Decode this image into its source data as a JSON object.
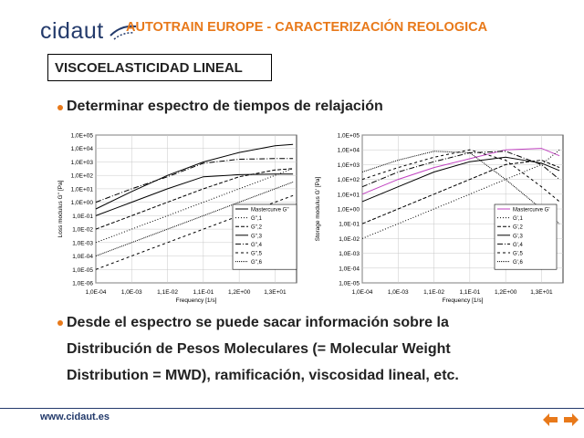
{
  "header": {
    "logo_text": "cidaut",
    "title": "AUTOTRAIN EUROPE - CARACTERIZACIÓN REOLOGICA"
  },
  "section": {
    "title": "VISCOELASTICIDAD LINEAL"
  },
  "bullets": [
    "Determinar espectro de tiempos de relajación",
    "Desde el espectro se puede sacar información sobre la",
    "Distribución de Pesos Moleculares (= Molecular Weight",
    "Distribution = MWD), ramificación, viscosidad lineal, etc."
  ],
  "footer": {
    "url": "www.cidaut.es"
  },
  "colors": {
    "accent": "#e8791a",
    "brand": "#233a6b"
  },
  "chart_data": [
    {
      "type": "line",
      "xlabel": "Frequency [1/s]",
      "ylabel": "Loss modulus G'' [Pa]",
      "x_tick_labels": [
        "1,0E-04",
        "1,0E-03",
        "1,1E-02",
        "1,1E-01",
        "1,2E+00",
        "1,3E+01"
      ],
      "y_tick_labels": [
        "1,0E+05",
        "1,0E+04",
        "1,0E+03",
        "1,0E+02",
        "1,0E+01",
        "1,0E+00",
        "1,0E-01",
        "1,0E-02",
        "1,0E-03",
        "1,0E-04",
        "1,0E-05",
        "1,0E-06"
      ],
      "ylim_log10": [
        -6,
        5
      ],
      "xlim_log10": [
        -4,
        1.6
      ],
      "legend_position": "bottom-right",
      "series": [
        {
          "name": "Mastercurve G''",
          "dash": "",
          "x_log10": [
            -4,
            -3,
            -2,
            -1,
            0,
            1,
            1.5
          ],
          "y_log10": [
            -0.5,
            0.8,
            2,
            3,
            3.7,
            4.2,
            4.3
          ]
        },
        {
          "name": "G'',1",
          "dash": "1,2",
          "x_log10": [
            -4,
            -3,
            -2,
            -1,
            0,
            1,
            1.5
          ],
          "y_log10": [
            -3,
            -2,
            -1,
            0,
            1,
            2,
            2.5
          ]
        },
        {
          "name": "G'',2",
          "dash": "4,2",
          "x_log10": [
            -4,
            -3,
            -2,
            -1,
            0,
            1,
            1.5
          ],
          "y_log10": [
            -2,
            -1,
            0,
            1,
            1.9,
            2.4,
            2.5
          ]
        },
        {
          "name": "G'',3",
          "dash": "",
          "x_log10": [
            -4,
            -3,
            -2,
            -1,
            0,
            1,
            1.5
          ],
          "y_log10": [
            -1,
            0,
            1,
            1.9,
            2.05,
            2.1,
            2.1
          ]
        },
        {
          "name": "G'',4",
          "dash": "6,2,1,2",
          "x_log10": [
            -4,
            -3,
            -2,
            -1,
            0,
            1,
            1.5
          ],
          "y_log10": [
            0,
            1,
            1.9,
            2.9,
            3.2,
            3.25,
            3.25
          ]
        },
        {
          "name": "G'',5",
          "dash": "3,3",
          "x_log10": [
            -4,
            -3,
            -2,
            -1,
            0,
            1,
            1.5
          ],
          "y_log10": [
            -5,
            -4,
            -3,
            -2,
            -1,
            0,
            0.5
          ]
        },
        {
          "name": "G'',6",
          "dash": "1,1",
          "x_log10": [
            -4,
            -3,
            -2,
            -1,
            0,
            1,
            1.5
          ],
          "y_log10": [
            -4,
            -3,
            -2,
            -1,
            0,
            1,
            1.5
          ]
        }
      ]
    },
    {
      "type": "line",
      "xlabel": "Frequency [1/s]",
      "ylabel": "Storage modulus G' [Pa]",
      "x_tick_labels": [
        "1,0E-04",
        "1,0E-03",
        "1,1E-02",
        "1,1E-01",
        "1,2E+00",
        "1,3E+01"
      ],
      "y_tick_labels": [
        "1,0E+05",
        "1,0E+04",
        "1,0E+03",
        "1,0E+02",
        "1,0E+01",
        "1,0E+00",
        "1,0E-01",
        "1,0E-02",
        "1,0E-03",
        "1,0E-04",
        "1,0E-05"
      ],
      "ylim_log10": [
        -5,
        5
      ],
      "xlim_log10": [
        -4,
        1.6
      ],
      "legend_position": "bottom-right",
      "series": [
        {
          "name": "Mastercurve G'",
          "dash": "",
          "color": "#c040c0",
          "x_log10": [
            -4,
            -3,
            -2,
            -1,
            0,
            1,
            1.5
          ],
          "y_log10": [
            1,
            2,
            2.8,
            3.4,
            4,
            4.1,
            3.6
          ]
        },
        {
          "name": "G',1",
          "dash": "1,2",
          "x_log10": [
            -4,
            -3,
            -2,
            -1,
            0,
            1,
            1.5
          ],
          "y_log10": [
            -2,
            -1,
            0,
            1,
            2,
            3,
            4
          ]
        },
        {
          "name": "G',2",
          "dash": "4,2",
          "x_log10": [
            -4,
            -3,
            -2,
            -1,
            0,
            1,
            1.5
          ],
          "y_log10": [
            -1,
            0,
            1,
            2,
            3,
            3.3,
            2.8
          ]
        },
        {
          "name": "G',3",
          "dash": "",
          "x_log10": [
            -4,
            -3,
            -2,
            -1,
            0,
            1,
            1.5
          ],
          "y_log10": [
            0.5,
            1.5,
            2.5,
            3.2,
            3.5,
            3.1,
            2.6
          ]
        },
        {
          "name": "G',4",
          "dash": "6,2,1,2",
          "x_log10": [
            -4,
            -3,
            -2,
            -1,
            0,
            1,
            1.5
          ],
          "y_log10": [
            1.5,
            2.5,
            3.2,
            3.8,
            3.9,
            3.0,
            2.0
          ]
        },
        {
          "name": "G',5",
          "dash": "3,3",
          "x_log10": [
            -4,
            -3,
            -2,
            -1,
            0,
            1,
            1.5
          ],
          "y_log10": [
            2,
            2.8,
            3.5,
            4,
            3.3,
            1.5,
            0.5
          ]
        },
        {
          "name": "G',6",
          "dash": "1,1",
          "x_log10": [
            -4,
            -3,
            -2,
            -1,
            0,
            1,
            1.5
          ],
          "y_log10": [
            2.5,
            3.3,
            3.9,
            3.8,
            2,
            0,
            -1
          ]
        }
      ]
    }
  ]
}
